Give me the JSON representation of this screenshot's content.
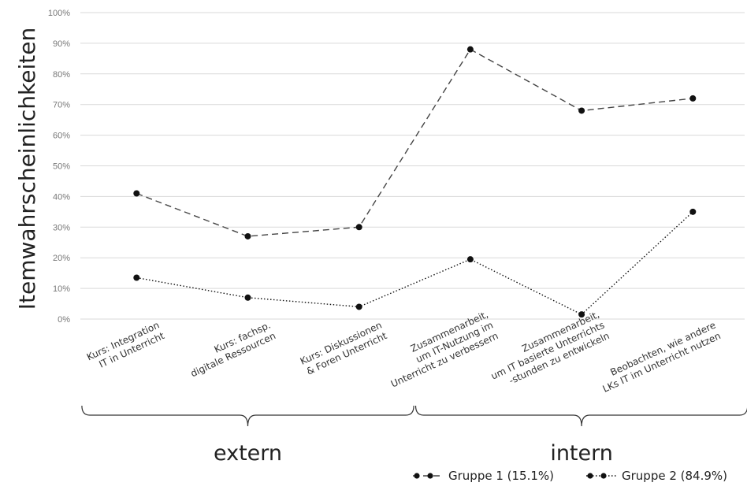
{
  "chart_data": {
    "type": "line",
    "ylabel": "Itemwahrscheinlichkeiten",
    "xlabel": "",
    "ylim": [
      0,
      100
    ],
    "yticks": [
      "0%",
      "10%",
      "20%",
      "30%",
      "40%",
      "50%",
      "60%",
      "70%",
      "80%",
      "90%",
      "100%"
    ],
    "categories": [
      [
        "Kurs: Integration",
        "IT in Unterricht"
      ],
      [
        "Kurs: fachsp.",
        "digitale Ressourcen"
      ],
      [
        "Kurs: Diskussionen",
        "& Foren Unterricht"
      ],
      [
        "Zusammenarbeit,",
        "um IT-Nutzung im",
        "Unterricht zu verbessern"
      ],
      [
        "Zusammenarbeit,",
        "um IT basierte Unterrichts",
        "-stunden zu entwickeln"
      ],
      [
        "Beobachten, wie andere",
        "LKs IT im Unterricht nutzen"
      ]
    ],
    "groups": [
      {
        "label": "extern",
        "from": 0,
        "to": 2
      },
      {
        "label": "intern",
        "from": 3,
        "to": 5
      }
    ],
    "series": [
      {
        "name": "Gruppe 1 (15.1%)",
        "style": "dashed",
        "color": "#444444",
        "values": [
          41,
          27,
          30,
          88,
          68,
          72
        ]
      },
      {
        "name": "Gruppe 2 (84.9%)",
        "style": "dotted",
        "color": "#111111",
        "values": [
          13.5,
          7,
          4,
          19.5,
          1.5,
          35
        ]
      }
    ],
    "grid": true,
    "legend_position": "bottom-right"
  }
}
